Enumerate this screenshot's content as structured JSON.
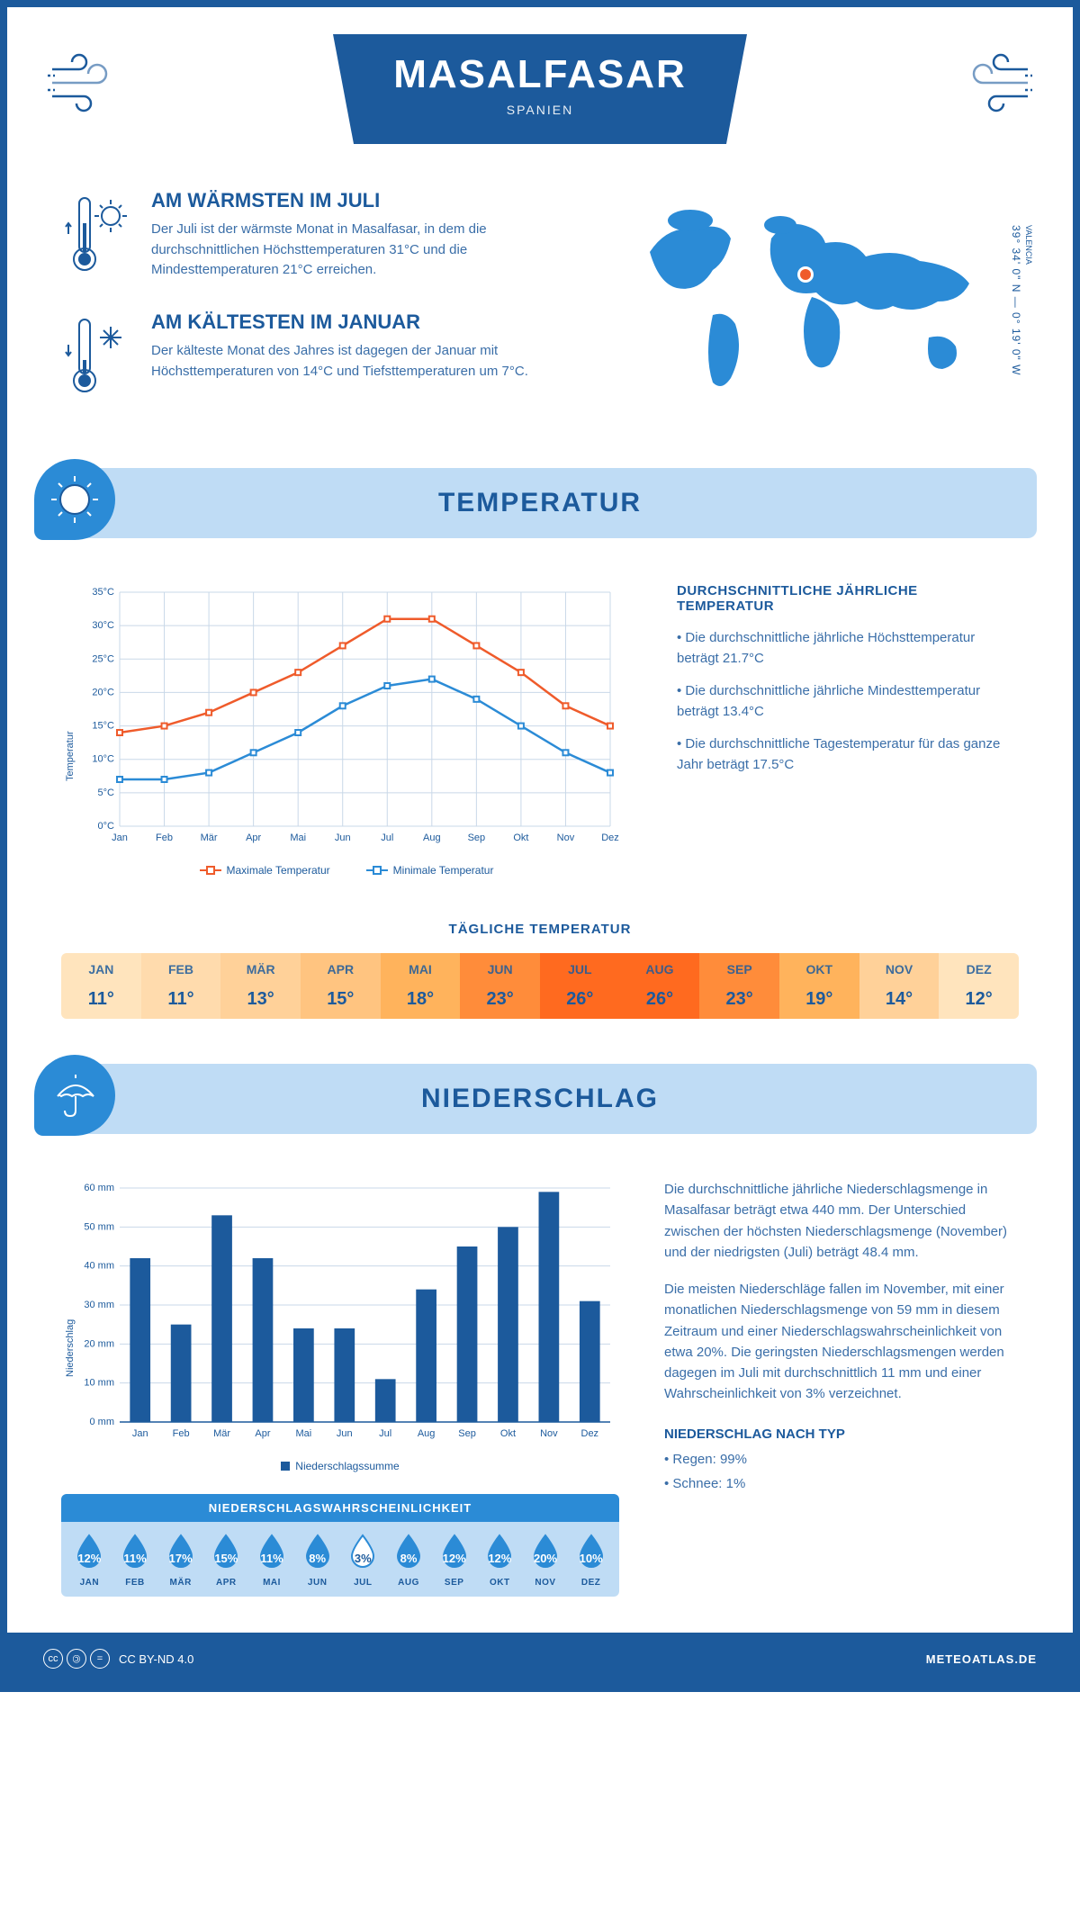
{
  "header": {
    "title": "MASALFASAR",
    "subtitle": "SPANIEN"
  },
  "coords_text": "39° 34' 0\" N — 0° 19' 0\" W",
  "region_label": "VALENCIA",
  "warm_block": {
    "title": "AM WÄRMSTEN IM JULI",
    "text": "Der Juli ist der wärmste Monat in Masalfasar, in dem die durchschnittlichen Höchsttemperaturen 31°C und die Mindesttemperaturen 21°C erreichen."
  },
  "cold_block": {
    "title": "AM KÄLTESTEN IM JANUAR",
    "text": "Der kälteste Monat des Jahres ist dagegen der Januar mit Höchsttemperaturen von 14°C und Tiefsttemperaturen um 7°C."
  },
  "temp_section": {
    "title": "TEMPERATUR",
    "info_title": "DURCHSCHNITTLICHE JÄHRLICHE TEMPERATUR",
    "bullets": [
      "• Die durchschnittliche jährliche Höchsttemperatur beträgt 21.7°C",
      "• Die durchschnittliche jährliche Mindesttemperatur beträgt 13.4°C",
      "• Die durchschnittliche Tagestemperatur für das ganze Jahr beträgt 17.5°C"
    ],
    "legend_max": "Maximale Temperatur",
    "legend_min": "Minimale Temperatur",
    "daily_title": "TÄGLICHE TEMPERATUR"
  },
  "temp_chart": {
    "type": "line",
    "months": [
      "Jan",
      "Feb",
      "Mär",
      "Apr",
      "Mai",
      "Jun",
      "Jul",
      "Aug",
      "Sep",
      "Okt",
      "Nov",
      "Dez"
    ],
    "max_series": [
      14,
      15,
      17,
      20,
      23,
      27,
      31,
      31,
      27,
      23,
      18,
      15
    ],
    "min_series": [
      7,
      7,
      8,
      11,
      14,
      18,
      21,
      22,
      19,
      15,
      11,
      8
    ],
    "max_color": "#ef5b2b",
    "min_color": "#2b8bd6",
    "ylim": [
      0,
      35
    ],
    "ytick_step": 5,
    "y_axis_label": "Temperatur",
    "grid_color": "#c9d8e8",
    "background": "#ffffff",
    "label_fontsize": 11
  },
  "daily_temp": {
    "months": [
      "JAN",
      "FEB",
      "MÄR",
      "APR",
      "MAI",
      "JUN",
      "JUL",
      "AUG",
      "SEP",
      "OKT",
      "NOV",
      "DEZ"
    ],
    "values": [
      "11°",
      "11°",
      "13°",
      "15°",
      "18°",
      "23°",
      "26°",
      "26°",
      "23°",
      "19°",
      "14°",
      "12°"
    ],
    "colors": [
      "#ffe4bd",
      "#ffdbad",
      "#ffd199",
      "#ffc480",
      "#ffb35c",
      "#ff8c3a",
      "#ff6a1f",
      "#ff6a1f",
      "#ff8c3a",
      "#ffb35c",
      "#ffd199",
      "#ffe4bd"
    ],
    "text_color": "#1c5a9c"
  },
  "precip_section": {
    "title": "NIEDERSCHLAG",
    "p1": "Die durchschnittliche jährliche Niederschlagsmenge in Masalfasar beträgt etwa 440 mm. Der Unterschied zwischen der höchsten Niederschlagsmenge (November) und der niedrigsten (Juli) beträgt 48.4 mm.",
    "p2": "Die meisten Niederschläge fallen im November, mit einer monatlichen Niederschlagsmenge von 59 mm in diesem Zeitraum und einer Niederschlagswahrscheinlichkeit von etwa 20%. Die geringsten Niederschlagsmengen werden dagegen im Juli mit durchschnittlich 11 mm und einer Wahrscheinlichkeit von 3% verzeichnet.",
    "type_title": "NIEDERSCHLAG NACH TYP",
    "type_bullets": [
      "• Regen: 99%",
      "• Schnee: 1%"
    ],
    "legend": "Niederschlagssumme"
  },
  "precip_chart": {
    "type": "bar",
    "months": [
      "Jan",
      "Feb",
      "Mär",
      "Apr",
      "Mai",
      "Jun",
      "Jul",
      "Aug",
      "Sep",
      "Okt",
      "Nov",
      "Dez"
    ],
    "values": [
      42,
      25,
      53,
      42,
      24,
      24,
      11,
      34,
      45,
      50,
      59,
      31
    ],
    "bar_color": "#1c5a9c",
    "ylim": [
      0,
      60
    ],
    "ytick_step": 10,
    "y_axis_label": "Niederschlag",
    "grid_color": "#c9d8e8",
    "bar_width": 0.5
  },
  "prob": {
    "title": "NIEDERSCHLAGSWAHRSCHEINLICHKEIT",
    "months": [
      "JAN",
      "FEB",
      "MÄR",
      "APR",
      "MAI",
      "JUN",
      "JUL",
      "AUG",
      "SEP",
      "OKT",
      "NOV",
      "DEZ"
    ],
    "values": [
      "12%",
      "11%",
      "17%",
      "15%",
      "11%",
      "8%",
      "3%",
      "8%",
      "12%",
      "12%",
      "20%",
      "10%"
    ],
    "raw": [
      12,
      11,
      17,
      15,
      11,
      8,
      3,
      8,
      12,
      12,
      20,
      10
    ],
    "drop_fill": "#2b8bd6",
    "drop_empty": "#ffffff",
    "drop_stroke": "#2b8bd6"
  },
  "footer": {
    "license": "CC BY-ND 4.0",
    "site": "METEOATLAS.DE"
  }
}
